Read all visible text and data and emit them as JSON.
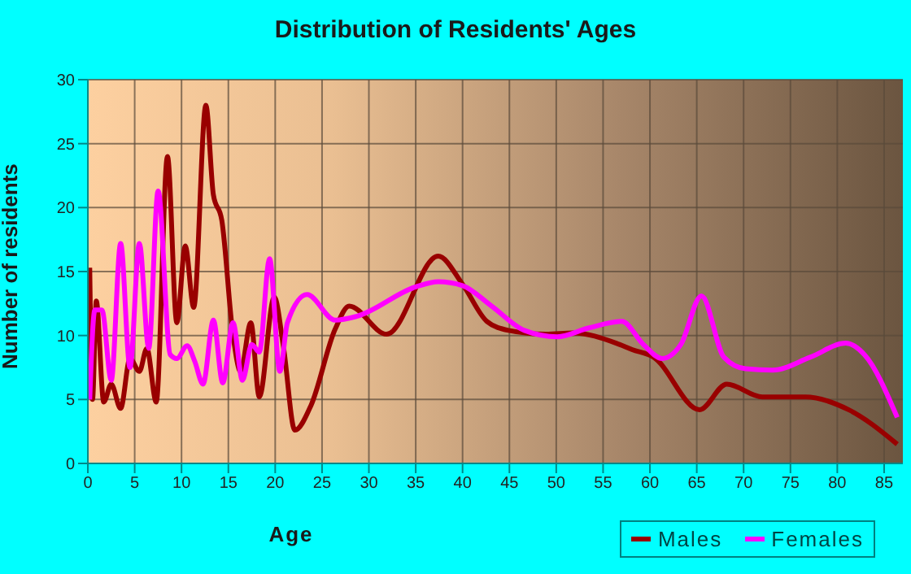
{
  "chart_data": {
    "type": "line",
    "title": "Distribution of Residents' Ages",
    "xlabel": "Age",
    "ylabel": "Number of residents",
    "xlim": [
      0,
      87
    ],
    "xticks": [
      0,
      5,
      10,
      15,
      20,
      25,
      30,
      35,
      40,
      45,
      50,
      55,
      60,
      65,
      70,
      75,
      80,
      85
    ],
    "ylim": [
      0,
      30
    ],
    "yticks": [
      0,
      5,
      10,
      15,
      20,
      25,
      30
    ],
    "grid": true,
    "legend": "bottom right",
    "marker": "none",
    "line_style": "solid",
    "series": [
      {
        "name": "Males",
        "color": "#990000",
        "x": [
          0.2,
          0.5,
          0.9,
          1.7,
          2.5,
          3.5,
          4.5,
          5.5,
          6.3,
          7.3,
          8.5,
          9.5,
          10.4,
          11.3,
          12.6,
          13.4,
          14.3,
          15.5,
          16.3,
          17.4,
          18.3,
          19.9,
          20.9,
          22.1,
          23.8,
          26.4,
          27.9,
          31.9,
          37.4,
          40,
          42.6,
          44.9,
          48.9,
          51.8,
          56.4,
          58.1,
          60.4,
          65.3,
          68.2,
          72,
          76.6,
          81.2,
          86.4
        ],
        "values": [
          15.3,
          5,
          12.7,
          4.8,
          6.2,
          4.3,
          8.2,
          7.2,
          9,
          4.8,
          24,
          11,
          17,
          12.2,
          28,
          21,
          19,
          10,
          7.2,
          11,
          5.2,
          13,
          9,
          2.6,
          4.5,
          10.5,
          12.3,
          10.1,
          16.2,
          14,
          11.1,
          10.4,
          10.1,
          10.2,
          9.4,
          8.9,
          8.3,
          4.2,
          6.2,
          5.2,
          5.2,
          4.2,
          1.5
        ]
      },
      {
        "name": "Females",
        "color": "#ff00ff",
        "x": [
          0.2,
          0.75,
          1.5,
          2.5,
          3.5,
          4.5,
          5.5,
          6.5,
          7.5,
          8.8,
          9.5,
          10.6,
          11.4,
          12.3,
          13.4,
          14.4,
          15.5,
          16.5,
          17.5,
          18.3,
          19.4,
          20.5,
          21.3,
          23.4,
          26.4,
          28.7,
          35,
          37.4,
          40,
          43.1,
          46.6,
          50.1,
          53.5,
          57,
          59.3,
          61.3,
          63.3,
          65.5,
          67.9,
          70.2,
          73.1,
          77.1,
          80.9,
          82.9,
          86.4
        ],
        "values": [
          5,
          12,
          12,
          6.5,
          17.2,
          7.5,
          17.2,
          9,
          21.3,
          8.5,
          8.2,
          9.2,
          8,
          6.2,
          11.2,
          6.3,
          11,
          6.5,
          9.3,
          8.7,
          16,
          7.2,
          11,
          13.2,
          11.2,
          11.5,
          13.8,
          14.2,
          13.9,
          12.3,
          10.4,
          9.9,
          10.6,
          11.1,
          9.3,
          8.2,
          9.3,
          13.1,
          8.3,
          7.4,
          7.3,
          8.3,
          9.4,
          8.5,
          3.6
        ]
      }
    ]
  }
}
